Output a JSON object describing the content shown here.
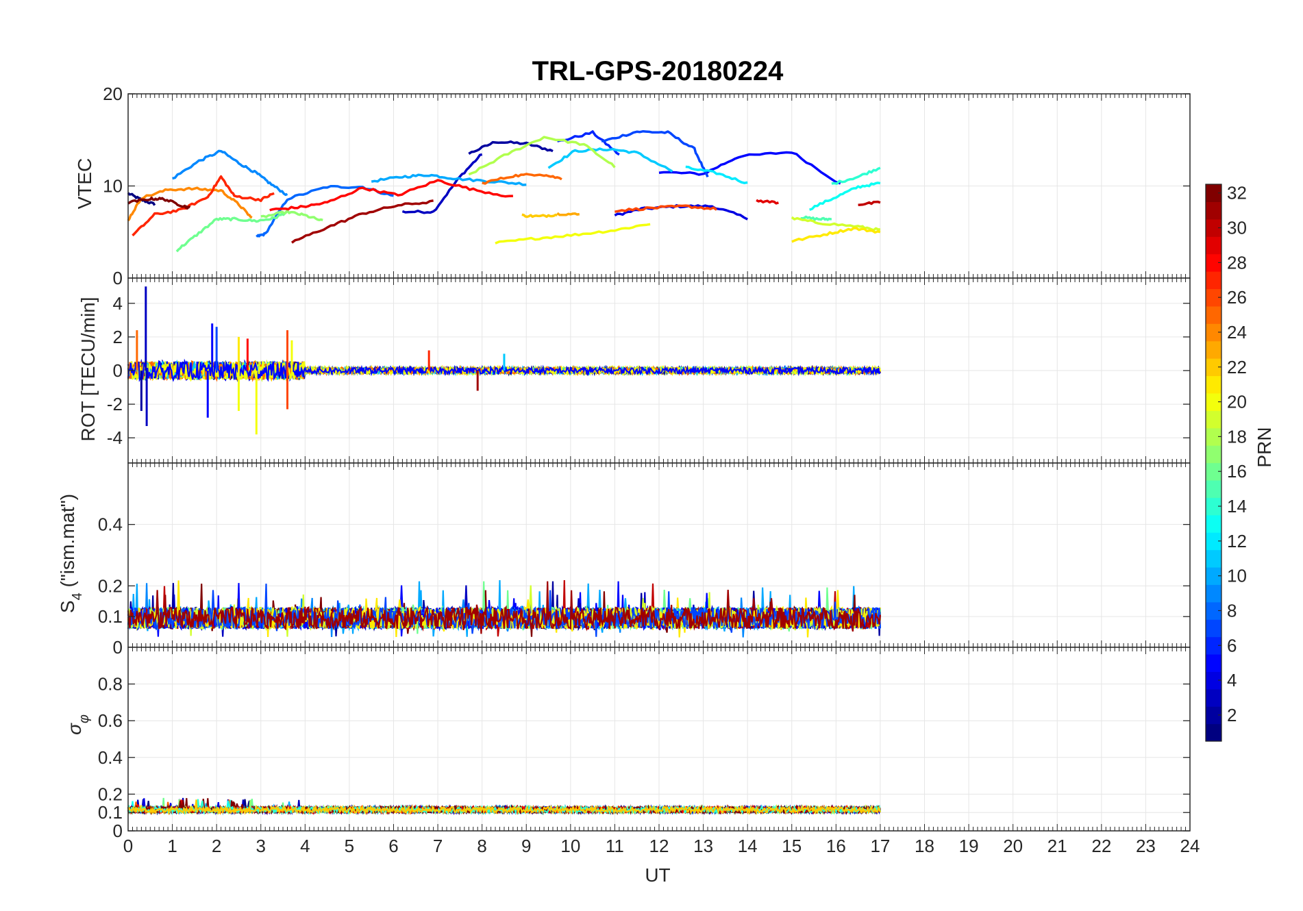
{
  "chart_data": {
    "type": "line",
    "title": "TRL-GPS-20180224",
    "xlabel": "UT",
    "xlim": [
      0,
      24
    ],
    "x_ticks": [
      "0",
      "1",
      "2",
      "3",
      "4",
      "5",
      "6",
      "7",
      "8",
      "9",
      "10",
      "11",
      "12",
      "13",
      "14",
      "15",
      "16",
      "17",
      "18",
      "19",
      "20",
      "21",
      "22",
      "23",
      "24"
    ],
    "grid": true,
    "colorbar": {
      "label": "PRN",
      "range": [
        1,
        32
      ],
      "ticks": [
        "2",
        "4",
        "6",
        "8",
        "10",
        "12",
        "14",
        "16",
        "18",
        "20",
        "22",
        "24",
        "26",
        "28",
        "30",
        "32"
      ],
      "colormap": "jet"
    },
    "panels": [
      {
        "ylabel": "VTEC",
        "ylim": [
          0,
          20
        ],
        "y_ticks": [
          "0",
          "10",
          "20"
        ],
        "series": [
          {
            "prn": 1,
            "x": [
              0.0,
              0.3,
              0.6
            ],
            "y": [
              9.2,
              8.5,
              8.0
            ]
          },
          {
            "prn": 2,
            "x": [
              7.7,
              8.3,
              9.0,
              9.6
            ],
            "y": [
              13.5,
              14.8,
              14.6,
              13.8
            ]
          },
          {
            "prn": 3,
            "x": [
              6.2,
              6.9,
              7.5,
              8.0
            ],
            "y": [
              7.2,
              7.2,
              11.0,
              13.5
            ]
          },
          {
            "prn": 4,
            "x": [
              11.0,
              11.6,
              12.4,
              13.2,
              14.0
            ],
            "y": [
              6.8,
              7.5,
              7.8,
              7.8,
              6.5
            ]
          },
          {
            "prn": 5,
            "x": [
              12.0,
              13.0,
              13.8,
              15.0,
              16.1
            ],
            "y": [
              11.5,
              11.3,
              13.2,
              13.7,
              10.2
            ]
          },
          {
            "prn": 6,
            "x": [
              9.7,
              10.5,
              11.1
            ],
            "y": [
              14.8,
              15.8,
              13.4
            ]
          },
          {
            "prn": 7,
            "x": [
              10.7,
              11.5,
              12.2,
              12.8,
              13.1
            ],
            "y": [
              14.8,
              15.9,
              15.8,
              14.0,
              10.9
            ]
          },
          {
            "prn": 8,
            "x": [
              2.9,
              3.1,
              3.6,
              4.5,
              5.3,
              6.0
            ],
            "y": [
              4.5,
              4.8,
              8.6,
              9.9,
              9.9,
              8.9
            ]
          },
          {
            "prn": 9,
            "x": [
              1.0,
              1.6,
              2.1,
              2.5,
              2.9,
              3.2,
              3.6
            ],
            "y": [
              10.8,
              12.7,
              13.8,
              12.5,
              11.4,
              10.3,
              9.0
            ]
          },
          {
            "prn": 10,
            "x": [
              5.5,
              6.2,
              6.8,
              7.4,
              8.2,
              9.0
            ],
            "y": [
              10.5,
              11.0,
              11.2,
              10.8,
              10.5,
              10.2
            ]
          },
          {
            "prn": 11,
            "x": [
              9.5,
              10.1,
              10.9,
              11.5,
              12.3
            ],
            "y": [
              12.0,
              13.8,
              14.0,
              13.6,
              11.6
            ]
          },
          {
            "prn": 12,
            "x": [
              12.6,
              13.3,
              14.0
            ],
            "y": [
              12.0,
              11.4,
              10.3
            ]
          },
          {
            "prn": 13,
            "x": [
              15.4,
              16.0,
              16.5,
              17.0
            ],
            "y": [
              7.5,
              8.8,
              9.9,
              10.3
            ]
          },
          {
            "prn": 14,
            "x": [
              15.9,
              16.5,
              17.0
            ],
            "y": [
              10.2,
              11.0,
              12.0
            ]
          },
          {
            "prn": 15,
            "x": [
              15.2,
              15.6,
              15.9
            ],
            "y": [
              6.6,
              6.4,
              6.4
            ]
          },
          {
            "prn": 16,
            "x": [
              1.1,
              1.5,
              2.0,
              2.4,
              2.9,
              3.3,
              3.6
            ],
            "y": [
              3.0,
              4.5,
              6.4,
              6.4,
              6.2,
              6.5,
              7.2
            ]
          },
          {
            "prn": 17,
            "x": [
              3.0,
              3.6,
              4.0,
              4.4
            ],
            "y": [
              6.6,
              7.2,
              6.8,
              6.2
            ]
          },
          {
            "prn": 18,
            "x": [
              7.7,
              8.5,
              9.4,
              10.3,
              11.0
            ],
            "y": [
              11.2,
              13.3,
              15.3,
              14.5,
              12.1
            ]
          },
          {
            "prn": 19,
            "x": [
              15.0,
              15.6,
              16.5,
              17.0
            ],
            "y": [
              6.5,
              6.0,
              5.6,
              5.2
            ]
          },
          {
            "prn": 20,
            "x": [
              8.3,
              9.2,
              10.1,
              11.0,
              11.8
            ],
            "y": [
              3.8,
              4.3,
              4.7,
              5.2,
              5.9
            ]
          },
          {
            "prn": 21,
            "x": [
              15.0,
              15.8,
              16.4,
              17.0
            ],
            "y": [
              4.0,
              4.8,
              5.4,
              5.0
            ]
          },
          {
            "prn": 22,
            "x": [
              8.9,
              9.3,
              9.7
            ],
            "y": [
              6.8,
              6.7,
              6.9
            ]
          },
          {
            "prn": 23,
            "x": [
              9.7,
              10.2
            ],
            "y": [
              7.0,
              6.9
            ]
          },
          {
            "prn": 24,
            "x": [
              0.0,
              0.3,
              0.9,
              1.5,
              2.1,
              2.5,
              2.8
            ],
            "y": [
              6.3,
              8.7,
              9.6,
              9.7,
              9.5,
              8.0,
              6.5
            ]
          },
          {
            "prn": 25,
            "x": [
              8.0,
              8.7,
              9.3,
              9.8
            ],
            "y": [
              10.3,
              11.1,
              11.3,
              10.8
            ]
          },
          {
            "prn": 26,
            "x": [
              11.0,
              11.8,
              12.6,
              13.3
            ],
            "y": [
              7.3,
              7.6,
              7.8,
              7.5
            ]
          },
          {
            "prn": 27,
            "x": [
              0.1,
              0.6,
              1.2,
              1.8,
              2.1,
              2.4,
              3.0,
              3.3
            ],
            "y": [
              4.6,
              6.9,
              7.4,
              8.8,
              11.0,
              8.9,
              8.5,
              9.2
            ]
          },
          {
            "prn": 28,
            "x": [
              3.2,
              3.9,
              4.5,
              5.3,
              6.1,
              7.0,
              7.8,
              8.7
            ],
            "y": [
              7.4,
              7.7,
              8.2,
              9.8,
              9.0,
              10.6,
              9.6,
              8.8
            ]
          },
          {
            "prn": 29,
            "x": [
              14.2,
              14.7
            ],
            "y": [
              8.4,
              8.2
            ]
          },
          {
            "prn": 30,
            "x": [
              16.5,
              17.0
            ],
            "y": [
              8.0,
              8.2
            ]
          },
          {
            "prn": 31,
            "x": [
              3.7,
              4.5,
              5.3,
              6.1,
              6.9
            ],
            "y": [
              3.9,
              5.5,
              7.0,
              7.9,
              8.3
            ]
          },
          {
            "prn": 32,
            "x": [
              0.0,
              0.5,
              0.8,
              1.2,
              1.4
            ],
            "y": [
              8.2,
              8.6,
              8.6,
              7.9,
              7.6
            ]
          }
        ]
      },
      {
        "ylabel": "ROT [TECU/min]",
        "ylim": [
          -5.5,
          5.5
        ],
        "y_ticks": [
          "-4",
          "-2",
          "0",
          "2",
          "4"
        ],
        "spikes": [
          {
            "prn": 3,
            "x": 0.4,
            "y": 5.0
          },
          {
            "prn": 3,
            "x": 0.42,
            "y": -3.3
          },
          {
            "prn": 2,
            "x": 0.3,
            "y": -2.4
          },
          {
            "prn": 25,
            "x": 0.2,
            "y": 2.4
          },
          {
            "prn": 5,
            "x": 1.9,
            "y": 2.8
          },
          {
            "prn": 5,
            "x": 1.8,
            "y": -2.8
          },
          {
            "prn": 7,
            "x": 2.0,
            "y": 2.6
          },
          {
            "prn": 20,
            "x": 2.5,
            "y": -2.4
          },
          {
            "prn": 21,
            "x": 2.5,
            "y": 2.0
          },
          {
            "prn": 20,
            "x": 2.9,
            "y": -3.8
          },
          {
            "prn": 26,
            "x": 3.6,
            "y": 2.4
          },
          {
            "prn": 26,
            "x": 3.6,
            "y": -2.3
          },
          {
            "prn": 20,
            "x": 3.7,
            "y": 1.8
          },
          {
            "prn": 28,
            "x": 2.7,
            "y": 1.9
          },
          {
            "prn": 11,
            "x": 8.5,
            "y": 1.0
          },
          {
            "prn": 31,
            "x": 7.9,
            "y": -1.2
          },
          {
            "prn": 27,
            "x": 6.8,
            "y": 1.2
          }
        ]
      },
      {
        "ylabel": "S4 (\"ism.mat\")",
        "ylabel_base": "S",
        "ylabel_sub": "4",
        "ylabel_rest": " (\"ism.mat\")",
        "ylim": [
          0,
          0.6
        ],
        "y_ticks": [
          "0",
          "0.1",
          "0.2",
          "0.4"
        ],
        "y_tick_values": [
          0,
          0.1,
          0.2,
          0.4
        ],
        "typical_range": [
          0.03,
          0.22
        ]
      },
      {
        "ylabel": "σφ",
        "ylabel_base": "σ",
        "ylabel_sub": "φ",
        "ylim": [
          0,
          1.0
        ],
        "y_ticks": [
          "0",
          "0.1",
          "0.2",
          "0.4",
          "0.6",
          "0.8"
        ],
        "y_tick_values": [
          0,
          0.1,
          0.2,
          0.4,
          0.6,
          0.8
        ],
        "typical_range": [
          0.1,
          0.18
        ]
      }
    ]
  }
}
